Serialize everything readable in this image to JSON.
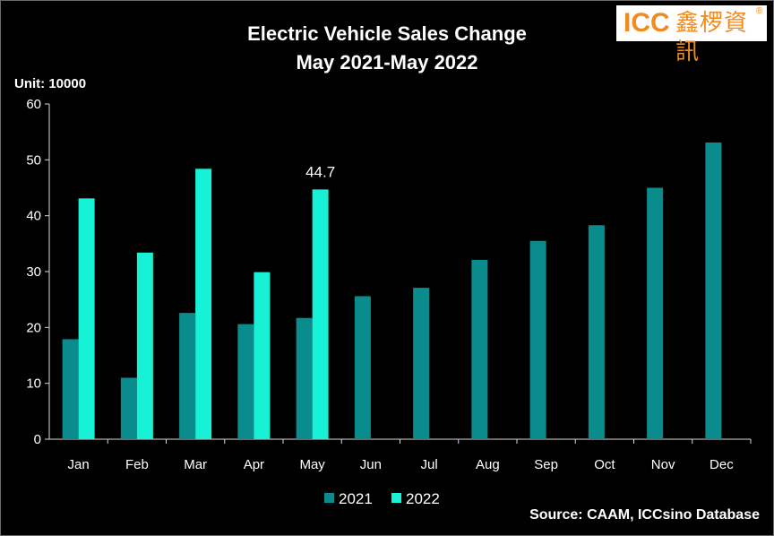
{
  "logo": {
    "text": "ICC",
    "chinese": "鑫椤資訊",
    "reg": "®"
  },
  "chart_data": {
    "type": "bar",
    "title": "Electric Vehicle Sales Change",
    "subtitle": "May 2021-May 2022",
    "unit_label": "Unit: 10000",
    "categories": [
      "Jan",
      "Feb",
      "Mar",
      "Apr",
      "May",
      "Jun",
      "Jul",
      "Aug",
      "Sep",
      "Oct",
      "Nov",
      "Dec"
    ],
    "series": [
      {
        "name": "2021",
        "color": "#0a8c8c",
        "values": [
          17.9,
          11.0,
          22.6,
          20.6,
          21.7,
          25.6,
          27.1,
          32.1,
          35.5,
          38.3,
          45.0,
          53.1
        ]
      },
      {
        "name": "2022",
        "color": "#17f2d6",
        "values": [
          43.1,
          33.4,
          48.4,
          29.9,
          44.7,
          null,
          null,
          null,
          null,
          null,
          null,
          null
        ]
      }
    ],
    "data_labels": [
      {
        "series": 1,
        "index": 4,
        "text": "44.7"
      }
    ],
    "ylim": [
      0,
      60
    ],
    "yticks": [
      0,
      10,
      20,
      30,
      40,
      50,
      60
    ],
    "legend_position": "bottom-center",
    "grid": false,
    "source": "Source: CAAM, ICCsino Database"
  }
}
